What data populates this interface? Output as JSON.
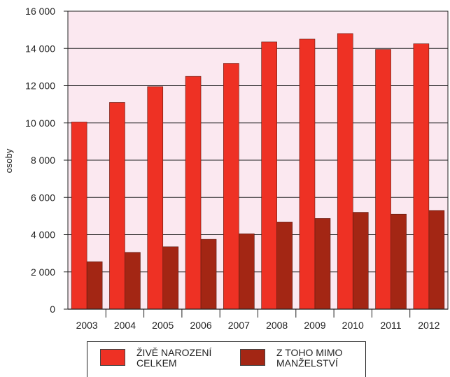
{
  "chart_data": {
    "type": "bar",
    "categories": [
      "2003",
      "2004",
      "2005",
      "2006",
      "2007",
      "2008",
      "2009",
      "2010",
      "2011",
      "2012"
    ],
    "series": [
      {
        "name": "ŽIVĚ NAROZENÍ CELKEM",
        "color": "#ee3124",
        "values": [
          10050,
          11100,
          11950,
          12500,
          13200,
          14350,
          14500,
          14800,
          13950,
          14250
        ]
      },
      {
        "name": "Z TOHO MIMO MANŽELSTVÍ",
        "color": "#a32614",
        "values": [
          2550,
          3050,
          3350,
          3750,
          4050,
          4680,
          4870,
          5200,
          5100,
          5300
        ]
      }
    ],
    "ylabel": "osoby",
    "ylim": [
      0,
      16000
    ],
    "yticks": [
      0,
      2000,
      4000,
      6000,
      8000,
      10000,
      12000,
      14000,
      16000
    ],
    "ytick_labels": [
      "0",
      "2 000",
      "4 000",
      "6 000",
      "8 000",
      "10 000",
      "12 000",
      "14 000",
      "16 000"
    ],
    "grid": true,
    "plot_background": "#fbe8f0",
    "legend_position": "bottom"
  },
  "legend": {
    "item1": {
      "line1": "ŽIVĚ NAROZENÍ",
      "line2": "CELKEM"
    },
    "item2": {
      "line1": "Z TOHO MIMO",
      "line2": "MANŽELSTVÍ"
    }
  }
}
